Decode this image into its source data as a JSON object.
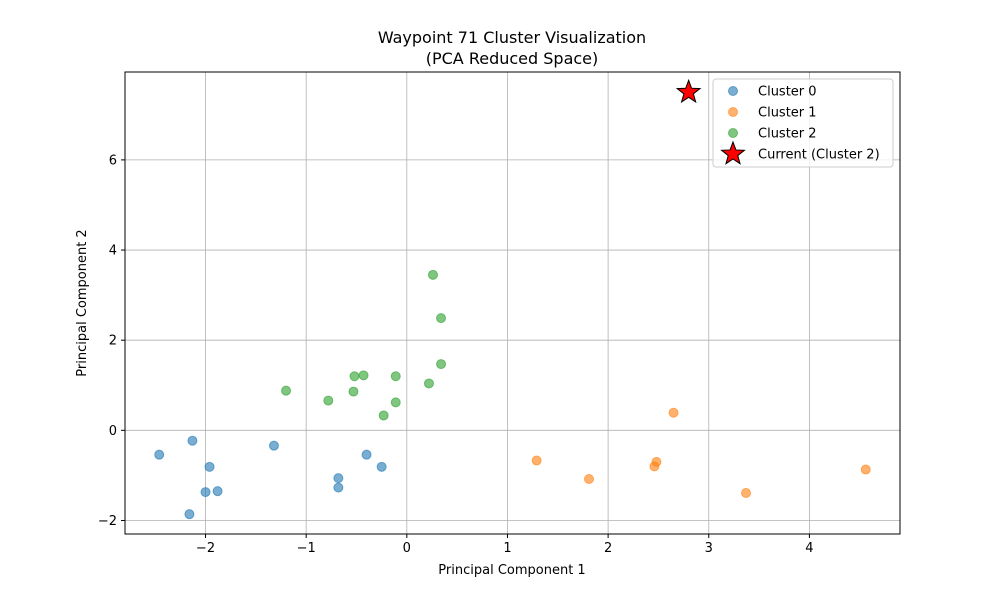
{
  "chart_data": {
    "type": "scatter",
    "title": "Waypoint 71 Cluster Visualization",
    "subtitle": "(PCA Reduced Space)",
    "xlabel": "Principal Component 1",
    "ylabel": "Principal Component 2",
    "xlim": [
      -2.8,
      4.9
    ],
    "ylim": [
      -2.3,
      7.95
    ],
    "xticks": [
      -2,
      -1,
      0,
      1,
      2,
      3,
      4
    ],
    "yticks": [
      -2,
      0,
      2,
      4,
      6
    ],
    "xtick_labels": [
      "−2",
      "−1",
      "0",
      "1",
      "2",
      "3",
      "4"
    ],
    "ytick_labels": [
      "−2",
      "0",
      "2",
      "4",
      "6"
    ],
    "grid": true,
    "legend_position": "top-right",
    "series": [
      {
        "name": "Cluster 0",
        "color": "#1f77b4",
        "marker": "circle",
        "points": [
          {
            "x": -2.46,
            "y": -0.54
          },
          {
            "x": -2.13,
            "y": -0.23
          },
          {
            "x": -1.96,
            "y": -0.81
          },
          {
            "x": -2.0,
            "y": -1.37
          },
          {
            "x": -1.88,
            "y": -1.35
          },
          {
            "x": -2.16,
            "y": -1.86
          },
          {
            "x": -1.32,
            "y": -0.34
          },
          {
            "x": -0.68,
            "y": -1.06
          },
          {
            "x": -0.68,
            "y": -1.27
          },
          {
            "x": -0.4,
            "y": -0.54
          },
          {
            "x": -0.25,
            "y": -0.81
          }
        ]
      },
      {
        "name": "Cluster 1",
        "color": "#ff7f0e",
        "marker": "circle",
        "points": [
          {
            "x": 1.29,
            "y": -0.67
          },
          {
            "x": 1.81,
            "y": -1.08
          },
          {
            "x": 2.46,
            "y": -0.8
          },
          {
            "x": 2.48,
            "y": -0.7
          },
          {
            "x": 2.65,
            "y": 0.39
          },
          {
            "x": 3.37,
            "y": -1.39
          },
          {
            "x": 4.56,
            "y": -0.87
          }
        ]
      },
      {
        "name": "Cluster 2",
        "color": "#2ca02c",
        "marker": "circle",
        "points": [
          {
            "x": -1.2,
            "y": 0.88
          },
          {
            "x": -0.78,
            "y": 0.66
          },
          {
            "x": -0.52,
            "y": 1.2
          },
          {
            "x": -0.43,
            "y": 1.22
          },
          {
            "x": -0.53,
            "y": 0.86
          },
          {
            "x": -0.23,
            "y": 0.33
          },
          {
            "x": -0.11,
            "y": 1.2
          },
          {
            "x": -0.11,
            "y": 0.62
          },
          {
            "x": 0.22,
            "y": 1.04
          },
          {
            "x": 0.34,
            "y": 1.47
          },
          {
            "x": 0.34,
            "y": 2.49
          },
          {
            "x": 0.26,
            "y": 3.45
          }
        ]
      },
      {
        "name": "Current (Cluster 2)",
        "color": "#ff0000",
        "marker": "star",
        "points": [
          {
            "x": 2.8,
            "y": 7.5
          }
        ]
      }
    ]
  }
}
